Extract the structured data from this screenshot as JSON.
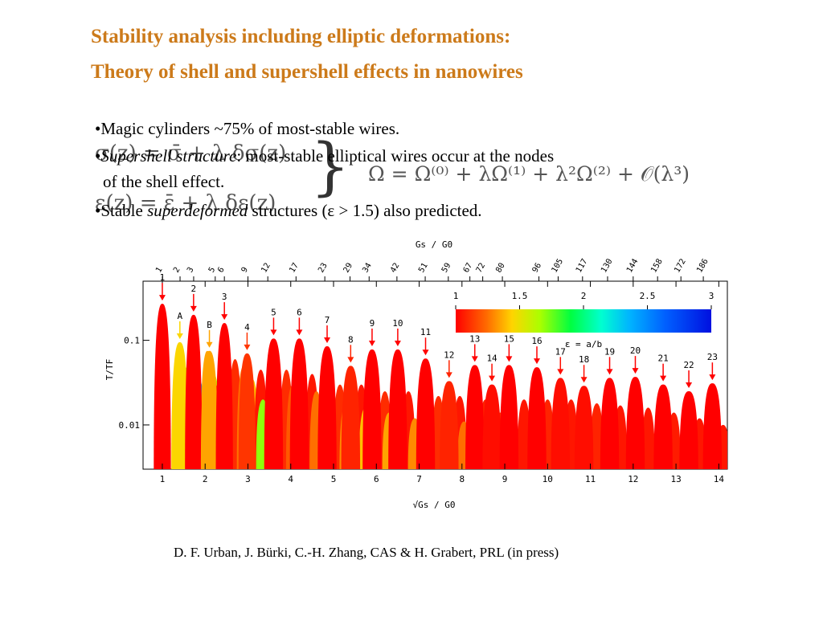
{
  "slide": {
    "title_line1": "Stability analysis including elliptic deformations:",
    "title_line2": "Theory of shell and supershell effects in nanowires",
    "formula_left_1": "σ(z) = σ̄ + λ δσ(z)",
    "formula_left_2": "ε(z) = ε̄ + λ δε(z)",
    "formula_right": "Ω = Ω⁽⁰⁾ + λΩ⁽¹⁾ + λ²Ω⁽²⁾ + 𝒪(λ³)",
    "bullet1": "•Magic cylinders ~75% of most-stable wires.",
    "bullet2_prefix": "•",
    "bullet2_italic": "Supershell structure",
    "bullet2_rest": ": most-stable elliptical wires occur at the nodes",
    "bullet2_line2": "of the shell effect.",
    "bullet3_prefix": "•Stable ",
    "bullet3_italic": "superdeformed",
    "bullet3_rest": " structures (ε > 1.5) also predicted.",
    "citation": "D. F. Urban, J. Bürki, C.-H. Zhang, CAS & H. Grabert, PRL (in press)"
  },
  "chart_data": {
    "type": "area",
    "xlabel": "√Gs / G0",
    "top_axis_label": "Gs / G0",
    "ylabel": "T/TF",
    "x_ticks": [
      1,
      2,
      3,
      4,
      5,
      6,
      7,
      8,
      9,
      10,
      11,
      12,
      13,
      14
    ],
    "xlim": [
      0.55,
      14.2
    ],
    "y_scale": "log",
    "ylim": [
      0.003,
      0.5
    ],
    "y_ticks": [
      {
        "value": 0.1,
        "label": "0.1"
      },
      {
        "value": 0.01,
        "label": "0.01"
      }
    ],
    "top_ticks": [
      1,
      2,
      3,
      5,
      6,
      9,
      12,
      17,
      23,
      29,
      34,
      42,
      51,
      59,
      67,
      72,
      80,
      96,
      105,
      117,
      130,
      144,
      158,
      172,
      186
    ],
    "colorbar": {
      "label": "ε = a/b",
      "ticks": [
        "1",
        "1.5",
        "2",
        "2.5",
        "3"
      ],
      "range": [
        1,
        3
      ]
    },
    "peaks": [
      {
        "label": "1",
        "x": 1.0,
        "y": 0.27,
        "eps": 1.0
      },
      {
        "label": "A",
        "x": 1.41,
        "y": 0.095,
        "eps": 1.45
      },
      {
        "label": "2",
        "x": 1.73,
        "y": 0.2,
        "eps": 1.0
      },
      {
        "label": "B",
        "x": 2.1,
        "y": 0.075,
        "eps": 1.35
      },
      {
        "label": "3",
        "x": 2.45,
        "y": 0.16,
        "eps": 1.0
      },
      {
        "label": "4",
        "x": 2.98,
        "y": 0.07,
        "eps": 1.12
      },
      {
        "label": "5",
        "x": 3.6,
        "y": 0.105,
        "eps": 1.0
      },
      {
        "label": "6",
        "x": 4.2,
        "y": 0.105,
        "eps": 1.0
      },
      {
        "label": "7",
        "x": 4.85,
        "y": 0.085,
        "eps": 1.0
      },
      {
        "label": "8",
        "x": 5.4,
        "y": 0.05,
        "eps": 1.08
      },
      {
        "label": "9",
        "x": 5.9,
        "y": 0.078,
        "eps": 1.0
      },
      {
        "label": "10",
        "x": 6.5,
        "y": 0.078,
        "eps": 1.0
      },
      {
        "label": "11",
        "x": 7.15,
        "y": 0.061,
        "eps": 1.0
      },
      {
        "label": "12",
        "x": 7.7,
        "y": 0.033,
        "eps": 1.08
      },
      {
        "label": "13",
        "x": 8.3,
        "y": 0.051,
        "eps": 1.0
      },
      {
        "label": "14",
        "x": 8.7,
        "y": 0.03,
        "eps": 1.03
      },
      {
        "label": "15",
        "x": 9.1,
        "y": 0.051,
        "eps": 1.0
      },
      {
        "label": "16",
        "x": 9.75,
        "y": 0.048,
        "eps": 1.0
      },
      {
        "label": "17",
        "x": 10.3,
        "y": 0.036,
        "eps": 1.03
      },
      {
        "label": "18",
        "x": 10.85,
        "y": 0.029,
        "eps": 1.03
      },
      {
        "label": "19",
        "x": 11.45,
        "y": 0.036,
        "eps": 1.0
      },
      {
        "label": "20",
        "x": 12.05,
        "y": 0.037,
        "eps": 1.0
      },
      {
        "label": "21",
        "x": 12.7,
        "y": 0.03,
        "eps": 1.0
      },
      {
        "label": "22",
        "x": 13.3,
        "y": 0.025,
        "eps": 1.0
      },
      {
        "label": "23",
        "x": 13.85,
        "y": 0.031,
        "eps": 1.0
      }
    ]
  }
}
